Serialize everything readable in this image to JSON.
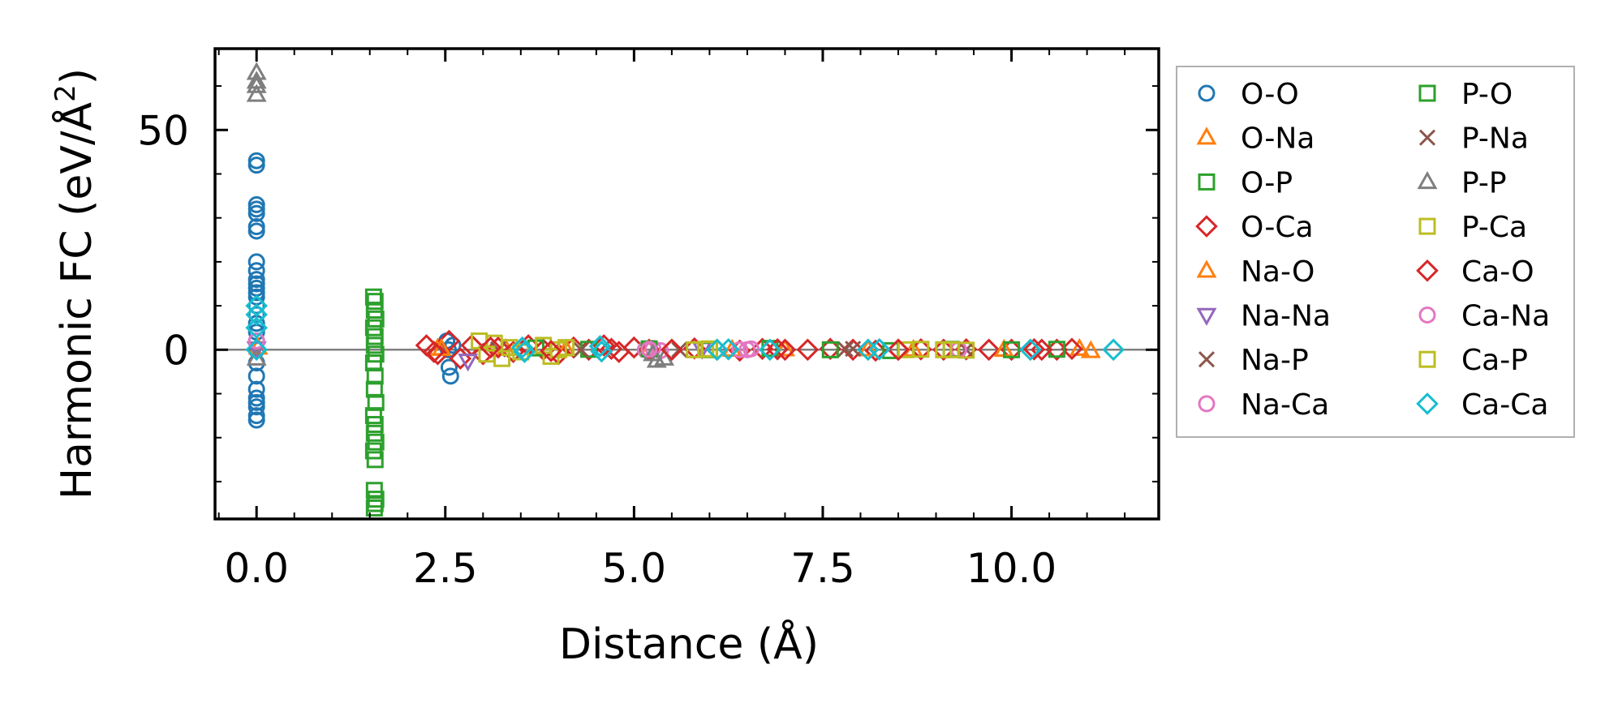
{
  "chart_data": {
    "type": "scatter",
    "title": "",
    "xlabel": "Distance (Å)",
    "ylabel": "Harmonic FC (eV/Å²)",
    "ylabel_base": "Harmonic FC (eV/Å",
    "ylabel_sup": "2",
    "ylabel_close": ")",
    "xlim": [
      -0.55,
      11.95
    ],
    "ylim": [
      -38.5,
      68.5
    ],
    "x_ticks": [
      0.0,
      2.5,
      5.0,
      7.5,
      10.0
    ],
    "x_tick_labels": [
      "0.0",
      "2.5",
      "5.0",
      "7.5",
      "10.0"
    ],
    "y_ticks": [
      0,
      50
    ],
    "y_tick_labels": [
      "0",
      "50"
    ],
    "grid": false,
    "zero_line": true,
    "legend_position": "right",
    "series": [
      {
        "name": "O-O",
        "marker": "circle",
        "color": "#1f77b4",
        "x": [
          0,
          0,
          0,
          0,
          0,
          0,
          0,
          0,
          0,
          0,
          0,
          0,
          0,
          0,
          0,
          0,
          0,
          0,
          0,
          0,
          0,
          0,
          0,
          0,
          0,
          0,
          0,
          0,
          2.52,
          2.55,
          2.57,
          2.6,
          2.54
        ],
        "y": [
          43,
          42,
          33,
          32,
          31,
          28,
          27,
          20,
          18,
          16,
          15,
          14,
          13,
          12,
          10,
          8,
          6,
          4,
          2,
          0,
          -3,
          -6,
          -9,
          -11,
          -12,
          -13,
          -15,
          -16,
          2,
          -4,
          -6,
          1,
          0
        ]
      },
      {
        "name": "O-Na",
        "marker": "triangle-up",
        "color": "#ff7f0e",
        "x": [
          0.02,
          2.4,
          3.3,
          5.2,
          7.0,
          8.7,
          10.9,
          11.05
        ],
        "y": [
          0.5,
          0.3,
          0.2,
          0.1,
          0.1,
          0,
          0.2,
          -0.3
        ]
      },
      {
        "name": "O-P",
        "marker": "square",
        "color": "#2ca02c",
        "x": [
          1.55,
          1.57,
          1.56,
          1.58,
          1.55,
          1.57,
          1.56,
          1.58,
          1.55,
          1.57,
          1.56,
          1.58,
          1.55,
          1.57,
          1.56,
          1.58,
          1.55,
          1.57,
          1.56,
          1.58,
          1.57,
          1.56
        ],
        "y": [
          12,
          11,
          9,
          7,
          5,
          3,
          1,
          -1,
          -3,
          -6,
          -9,
          -12,
          -15,
          -17,
          -19,
          -21,
          -23,
          -25,
          -32,
          -34,
          -35,
          -36
        ]
      },
      {
        "name": "O-Ca",
        "marker": "diamond",
        "color": "#d62728",
        "x": [
          2.25,
          2.4,
          2.55,
          2.7,
          2.85,
          3.0,
          3.2,
          3.4,
          3.6,
          3.8,
          4.0,
          4.2,
          4.4,
          4.6,
          4.8,
          5.0,
          5.2,
          5.5,
          5.8,
          6.1,
          6.4,
          6.7,
          7.0,
          7.3,
          7.6,
          7.9,
          8.2,
          8.5,
          8.8,
          9.1,
          9.4,
          9.7,
          10.0,
          10.3,
          10.6,
          10.8
        ],
        "y": [
          1,
          -1,
          2,
          -2,
          1,
          -1,
          0.5,
          -0.5,
          1,
          0,
          -1,
          0.5,
          0,
          1,
          -0.5,
          0.5,
          0,
          0,
          0.3,
          0,
          -0.2,
          0.2,
          0,
          0,
          0.2,
          0,
          -0.2,
          0,
          0.1,
          0,
          0.1,
          0,
          0,
          0.1,
          0,
          0.2
        ]
      },
      {
        "name": "Na-O",
        "marker": "triangle-up",
        "color": "#ff7f0e",
        "x": [
          2.45,
          4.1,
          6.3,
          8.1,
          9.9
        ],
        "y": [
          0.2,
          0.1,
          0,
          0.1,
          0
        ]
      },
      {
        "name": "Na-Na",
        "marker": "triangle-down",
        "color": "#9467bd",
        "x": [
          0,
          2.8,
          5.9
        ],
        "y": [
          0.3,
          -2.5,
          0.2
        ]
      },
      {
        "name": "Na-P",
        "marker": "x",
        "color": "#8c564b",
        "x": [
          3.2,
          5.6,
          7.8,
          9.4
        ],
        "y": [
          0.1,
          0,
          0.1,
          0
        ]
      },
      {
        "name": "Na-Ca",
        "marker": "circle",
        "color": "#e377c2",
        "x": [
          5.15,
          5.25,
          5.35,
          6.4,
          6.55,
          9.3
        ],
        "y": [
          0,
          0.3,
          -0.2,
          0,
          0.2,
          0
        ]
      },
      {
        "name": "P-O",
        "marker": "square",
        "color": "#2ca02c",
        "x": [
          3.7,
          4.4,
          5.2,
          6.0,
          6.8,
          7.6,
          8.4,
          9.2,
          10.0,
          10.6
        ],
        "y": [
          0.4,
          0.1,
          0.2,
          0,
          0.3,
          0,
          -0.2,
          0.1,
          0,
          0.1
        ]
      },
      {
        "name": "P-Na",
        "marker": "x",
        "color": "#8c564b",
        "x": [
          4.3,
          7.9
        ],
        "y": [
          0,
          0.2
        ]
      },
      {
        "name": "P-P",
        "marker": "triangle-up",
        "color": "#7f7f7f",
        "x": [
          0,
          0,
          0,
          0,
          0,
          5.25,
          5.3,
          5.4
        ],
        "y": [
          63,
          61,
          60,
          58,
          -2,
          -1,
          -2.5,
          -2
        ]
      },
      {
        "name": "P-Ca",
        "marker": "square",
        "color": "#bcbd22",
        "x": [
          2.95,
          3.05,
          3.15,
          3.25,
          3.35,
          3.8,
          3.9,
          4.0,
          4.1,
          5.8,
          6.0,
          8.6,
          8.8,
          9.2,
          9.4
        ],
        "y": [
          2,
          -1,
          1.5,
          -2,
          0.5,
          1,
          -1.5,
          0,
          0.5,
          0,
          0.2,
          0,
          0.1,
          0,
          -0.1
        ]
      },
      {
        "name": "Ca-O",
        "marker": "diamond",
        "color": "#d62728",
        "x": [
          2.35,
          3.1,
          3.9,
          4.7,
          5.5,
          6.9,
          8.5,
          10.4
        ],
        "y": [
          -0.5,
          0.5,
          -0.3,
          0.2,
          0,
          0.1,
          0,
          0
        ]
      },
      {
        "name": "Ca-Na",
        "marker": "circle",
        "color": "#e377c2",
        "x": [
          0,
          5.2,
          6.5
        ],
        "y": [
          2,
          0.1,
          0
        ]
      },
      {
        "name": "Ca-P",
        "marker": "square",
        "color": "#bcbd22",
        "x": [
          3.5,
          5.95,
          9.1
        ],
        "y": [
          -0.5,
          0.1,
          0
        ]
      },
      {
        "name": "Ca-Ca",
        "marker": "diamond",
        "color": "#17becf",
        "x": [
          0,
          0,
          0,
          0,
          3.52,
          3.55,
          4.55,
          4.57,
          6.1,
          6.25,
          6.8,
          8.1,
          8.25,
          10.25,
          11.35
        ],
        "y": [
          10,
          8,
          5,
          0,
          0.5,
          -0.5,
          0.8,
          -0.4,
          0,
          0.1,
          0,
          0,
          0.1,
          0,
          0
        ]
      }
    ]
  }
}
